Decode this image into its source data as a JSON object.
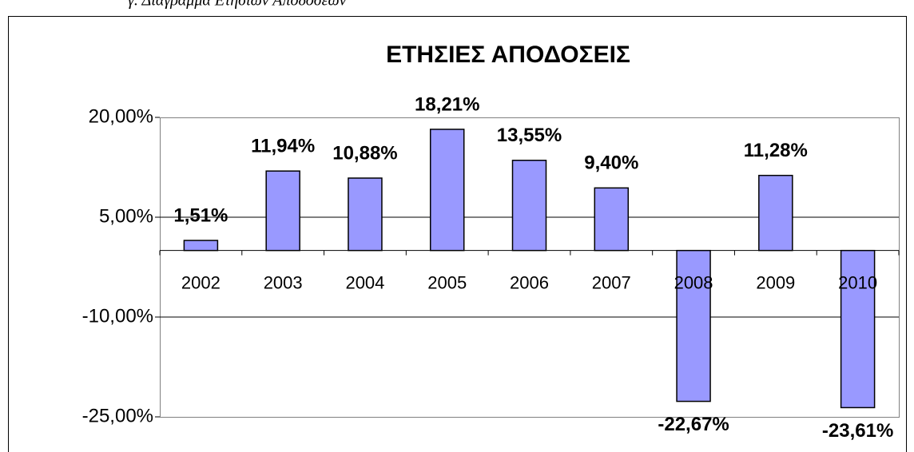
{
  "caption": "γ. Διάγραμμα Ετήσιων Αποδόσεων",
  "chart_data": {
    "type": "bar",
    "title": "ΕΤΗΣΙΕΣ ΑΠΟΔΟΣΕΙΣ",
    "categories": [
      "2002",
      "2003",
      "2004",
      "2005",
      "2006",
      "2007",
      "2008",
      "2009",
      "2010"
    ],
    "values": [
      1.51,
      11.94,
      10.88,
      18.21,
      13.55,
      9.4,
      -22.67,
      11.28,
      -23.61
    ],
    "value_labels": [
      "1,51%",
      "11,94%",
      "10,88%",
      "18,21%",
      "13,55%",
      "9,40%",
      "-22,67%",
      "11,28%",
      "-23,61%"
    ],
    "color": "#9999ff",
    "ylim": [
      -25,
      20
    ],
    "yticks": [
      {
        "value": -25,
        "label": "-25,00%"
      },
      {
        "value": -10,
        "label": "-10,00%"
      },
      {
        "value": 5,
        "label": "5,00%"
      },
      {
        "value": 20,
        "label": "20,00%"
      }
    ],
    "grid": true
  }
}
